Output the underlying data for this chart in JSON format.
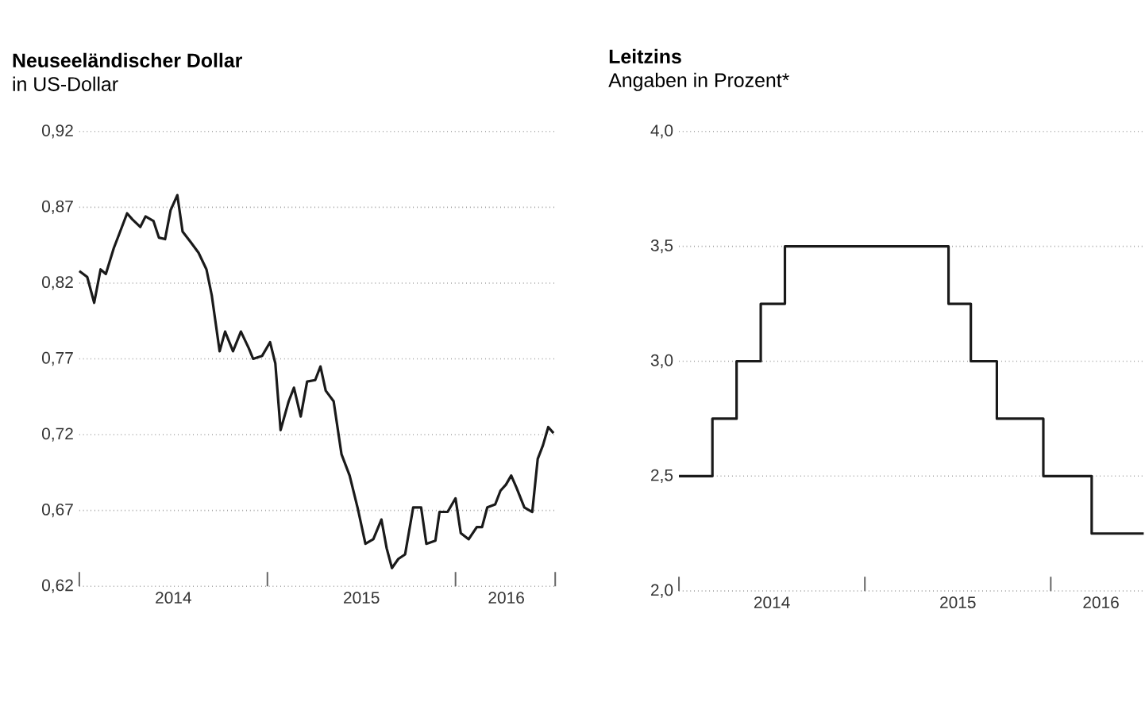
{
  "chart_data": [
    {
      "type": "line",
      "title": "Neuseeländischer Dollar",
      "subtitle": "in US-Dollar",
      "x": [
        2014.0,
        2014.042,
        2014.079,
        2014.113,
        2014.141,
        2014.183,
        2014.211,
        2014.254,
        2014.282,
        2014.324,
        2014.352,
        2014.394,
        2014.423,
        2014.456,
        2014.485,
        2014.521,
        2014.549,
        2014.592,
        2014.634,
        2014.676,
        2014.704,
        2014.746,
        2014.775,
        2014.817,
        2014.859,
        2014.901,
        2014.924,
        2014.972,
        2015.014,
        2015.042,
        2015.07,
        2015.113,
        2015.141,
        2015.177,
        2015.211,
        2015.254,
        2015.282,
        2015.31,
        2015.352,
        2015.394,
        2015.437,
        2015.479,
        2015.521,
        2015.563,
        2015.606,
        2015.634,
        2015.662,
        2015.696,
        2015.732,
        2015.775,
        2015.817,
        2015.845,
        2015.893,
        2015.915,
        2015.958,
        2016.0,
        2016.028,
        2016.07,
        2016.113,
        2016.141,
        2016.169,
        2016.211,
        2016.239,
        2016.268,
        2016.296,
        2016.324,
        2016.366,
        2016.408,
        2016.437,
        2016.465,
        2016.493,
        2016.521
      ],
      "series": [
        {
          "color": "#1a1a1a",
          "values": [
            0.828,
            0.824,
            0.807,
            0.829,
            0.826,
            0.843,
            0.852,
            0.866,
            0.862,
            0.857,
            0.864,
            0.861,
            0.85,
            0.849,
            0.868,
            0.878,
            0.854,
            0.847,
            0.84,
            0.829,
            0.812,
            0.775,
            0.788,
            0.775,
            0.788,
            0.777,
            0.77,
            0.772,
            0.781,
            0.767,
            0.723,
            0.742,
            0.751,
            0.732,
            0.755,
            0.756,
            0.765,
            0.749,
            0.742,
            0.707,
            0.693,
            0.672,
            0.648,
            0.651,
            0.664,
            0.645,
            0.632,
            0.638,
            0.641,
            0.672,
            0.672,
            0.648,
            0.65,
            0.669,
            0.669,
            0.678,
            0.655,
            0.651,
            0.659,
            0.659,
            0.672,
            0.674,
            0.683,
            0.687,
            0.693,
            0.685,
            0.672,
            0.669,
            0.704,
            0.713,
            0.725,
            0.721
          ]
        }
      ],
      "xlim": [
        2014,
        2016.53
      ],
      "ylim": [
        0.62,
        0.92
      ],
      "xticks": [
        {
          "value": 2014,
          "label": null
        },
        {
          "value": 2015,
          "label": null
        },
        {
          "value": 2016,
          "label": null
        },
        {
          "value": 2016.53,
          "label": null
        },
        {
          "value": 2014.5,
          "label": "2014"
        },
        {
          "value": 2015.5,
          "label": "2015"
        },
        {
          "value": 2016.27,
          "label": "2016"
        }
      ],
      "yticks": [
        {
          "value": 0.62,
          "label": "0,62"
        },
        {
          "value": 0.67,
          "label": "0,67"
        },
        {
          "value": 0.72,
          "label": "0,72"
        },
        {
          "value": 0.77,
          "label": "0,77"
        },
        {
          "value": 0.82,
          "label": "0,82"
        },
        {
          "value": 0.87,
          "label": "0,87"
        },
        {
          "value": 0.92,
          "label": "0,92"
        }
      ],
      "grid": "y"
    },
    {
      "type": "step",
      "title": "Leitzins",
      "subtitle": "Angaben in Prozent*",
      "x": [
        2014.0,
        2014.18,
        2014.31,
        2014.44,
        2014.57,
        2015.45,
        2015.57,
        2015.71,
        2015.96,
        2016.22,
        2016.5
      ],
      "series": [
        {
          "color": "#1a1a1a",
          "values": [
            2.5,
            2.75,
            3.0,
            3.25,
            3.5,
            3.25,
            3.0,
            2.75,
            2.5,
            2.25,
            2.25
          ]
        }
      ],
      "xlim": [
        2014,
        2016.5
      ],
      "ylim": [
        2.0,
        4.0
      ],
      "xticks": [
        {
          "value": 2014,
          "label": null
        },
        {
          "value": 2015,
          "label": null
        },
        {
          "value": 2016,
          "label": null
        },
        {
          "value": 2014.5,
          "label": "2014"
        },
        {
          "value": 2015.5,
          "label": "2015"
        },
        {
          "value": 2016.27,
          "label": "2016"
        }
      ],
      "yticks": [
        {
          "value": 2.0,
          "label": "2,0"
        },
        {
          "value": 2.5,
          "label": "2,5"
        },
        {
          "value": 3.0,
          "label": "3,0"
        },
        {
          "value": 3.5,
          "label": "3,5"
        },
        {
          "value": 4.0,
          "label": "4,0"
        }
      ],
      "grid": "y"
    }
  ]
}
